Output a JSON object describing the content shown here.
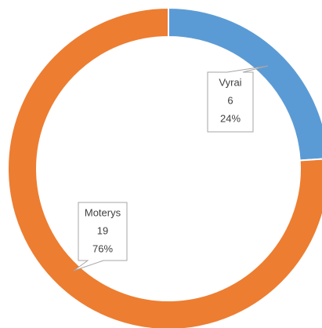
{
  "chart_data": {
    "type": "donut",
    "categories": [
      "Vyrai",
      "Moterys"
    ],
    "values": [
      6,
      19
    ],
    "percent_labels": [
      "24%",
      "76%"
    ],
    "colors": [
      "#5b9bd5",
      "#ed7d31"
    ]
  }
}
